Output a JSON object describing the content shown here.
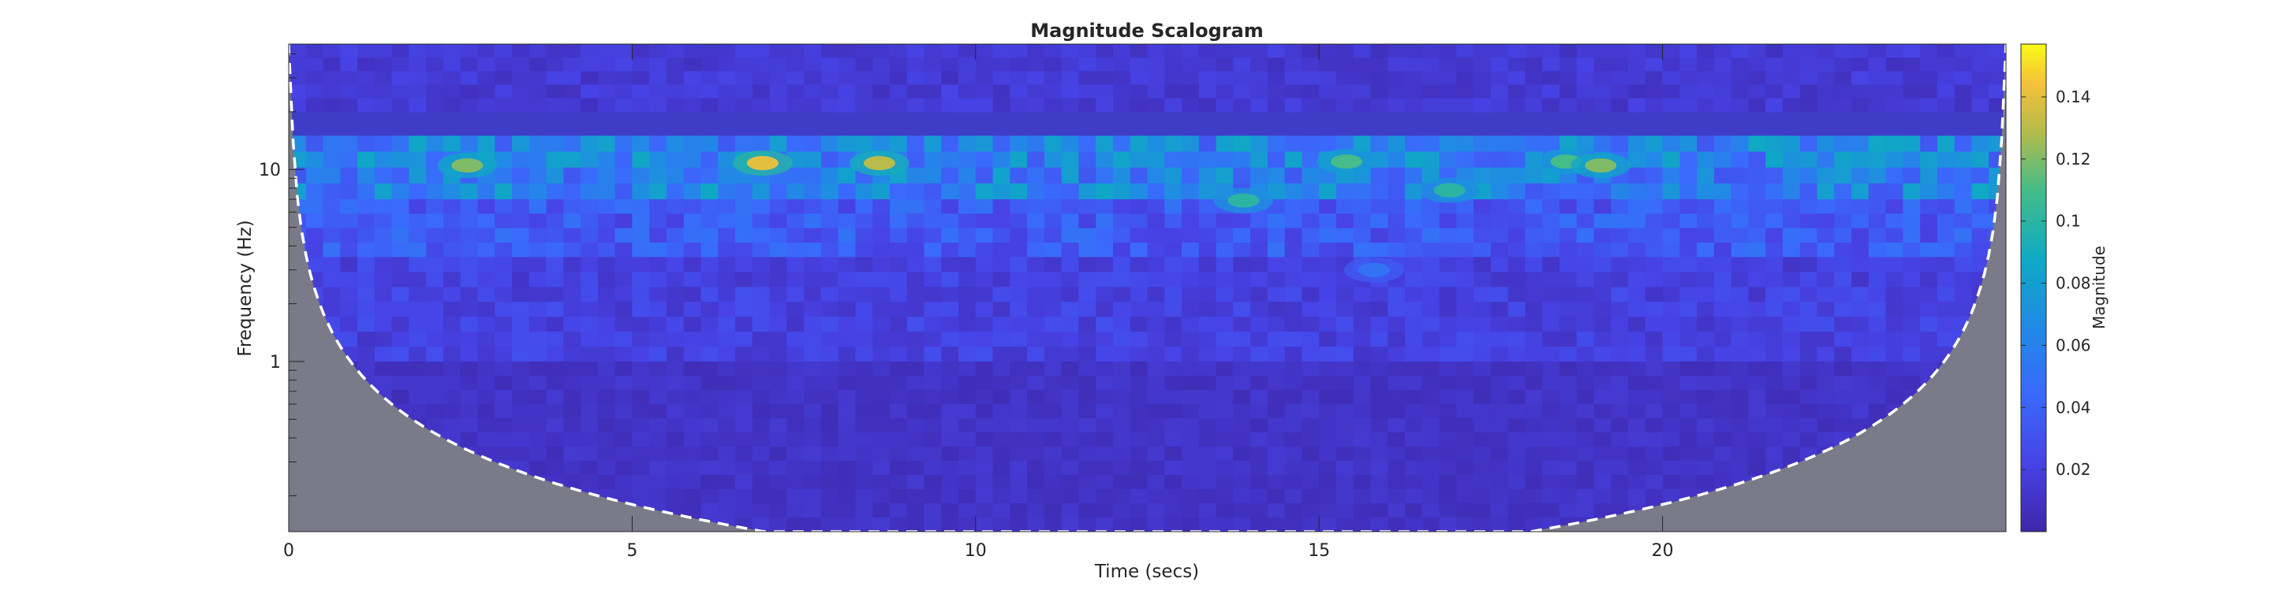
{
  "chart_data": {
    "type": "heatmap",
    "title": "Magnitude Scalogram",
    "xlabel": "Time (secs)",
    "ylabel": "Frequency (Hz)",
    "xlim": [
      0,
      25
    ],
    "ylim_hz": [
      0.13,
      45
    ],
    "y_scale": "log",
    "x_ticks": [
      "0",
      "5",
      "10",
      "15",
      "20"
    ],
    "x_tick_values": [
      0,
      5,
      10,
      15,
      20
    ],
    "y_ticks": [
      "1",
      "10"
    ],
    "y_tick_values": [
      1,
      10
    ],
    "colorbar": {
      "label": "Magnitude",
      "range": [
        0,
        0.157
      ],
      "ticks": [
        "0.02",
        "0.04",
        "0.06",
        "0.08",
        "0.1",
        "0.12",
        "0.14"
      ],
      "tick_values": [
        0.02,
        0.04,
        0.06,
        0.08,
        0.1,
        0.12,
        0.14
      ],
      "colormap": "parula"
    },
    "cone_of_influence": {
      "style": "white dashed",
      "shading_color": "#7a7a88"
    },
    "magnitude_bands": [
      {
        "freq_hz": [
          20,
          45
        ],
        "typical_magnitude": 0.015
      },
      {
        "freq_hz": [
          7,
          15
        ],
        "typical_magnitude": 0.06
      },
      {
        "freq_hz": [
          3.5,
          7
        ],
        "typical_magnitude": 0.035
      },
      {
        "freq_hz": [
          1,
          3.5
        ],
        "typical_magnitude": 0.02
      },
      {
        "freq_hz": [
          0.13,
          1
        ],
        "typical_magnitude": 0.01
      }
    ],
    "hotspots": [
      {
        "time_s": 2.6,
        "freq_hz": 10.5,
        "magnitude": 0.12
      },
      {
        "time_s": 6.9,
        "freq_hz": 10.8,
        "magnitude": 0.14
      },
      {
        "time_s": 8.6,
        "freq_hz": 10.8,
        "magnitude": 0.13
      },
      {
        "time_s": 13.9,
        "freq_hz": 6.9,
        "magnitude": 0.1
      },
      {
        "time_s": 15.4,
        "freq_hz": 11,
        "magnitude": 0.11
      },
      {
        "time_s": 16.9,
        "freq_hz": 7.8,
        "magnitude": 0.1
      },
      {
        "time_s": 18.6,
        "freq_hz": 11,
        "magnitude": 0.11
      },
      {
        "time_s": 19.1,
        "freq_hz": 10.5,
        "magnitude": 0.12
      },
      {
        "time_s": 15.8,
        "freq_hz": 3.0,
        "magnitude": 0.05
      }
    ]
  }
}
